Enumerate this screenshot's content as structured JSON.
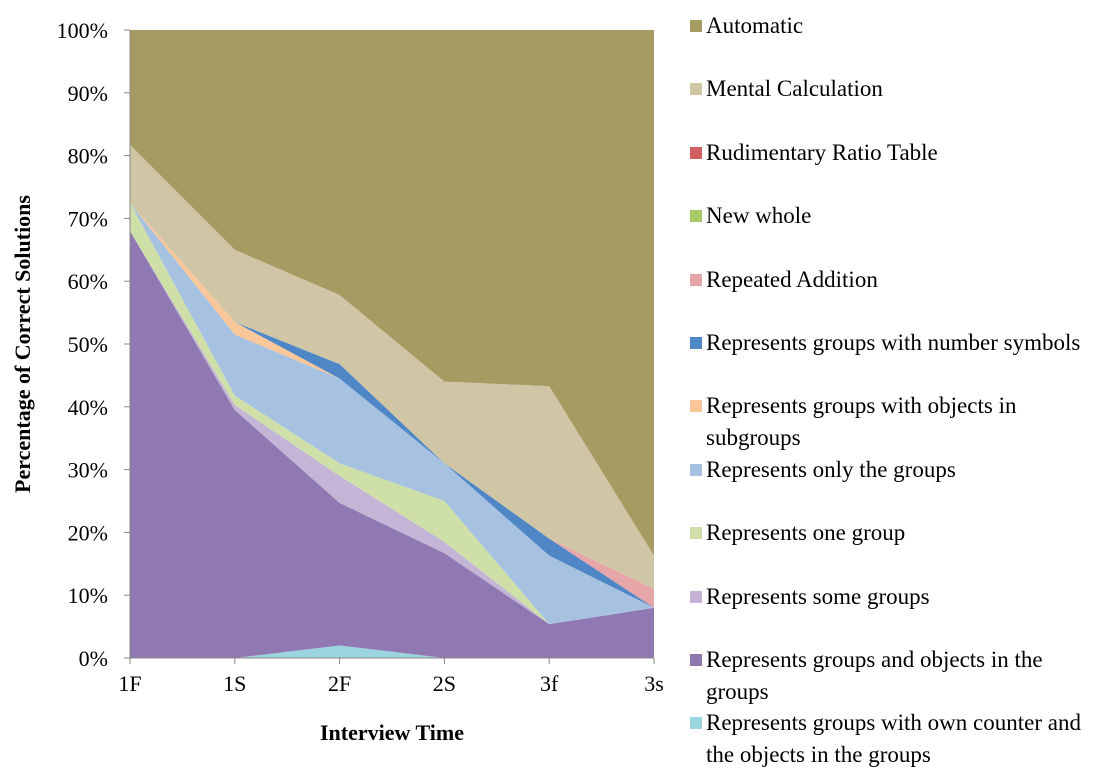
{
  "chart_data": {
    "type": "stacked-area",
    "xlabel": "Interview Time",
    "ylabel": "Percentage of Correct Solutions",
    "categories": [
      "1F",
      "1S",
      "2F",
      "2S",
      "3f",
      "3s"
    ],
    "ylim": [
      0,
      100
    ],
    "yticks": [
      {
        "value": 0,
        "label": "0%"
      },
      {
        "value": 10,
        "label": "10%"
      },
      {
        "value": 20,
        "label": "20%"
      },
      {
        "value": 30,
        "label": "30%"
      },
      {
        "value": 40,
        "label": "40%"
      },
      {
        "value": 50,
        "label": "50%"
      },
      {
        "value": 60,
        "label": "60%"
      },
      {
        "value": 70,
        "label": "70%"
      },
      {
        "value": 80,
        "label": "80%"
      },
      {
        "value": 90,
        "label": "90%"
      },
      {
        "value": 100,
        "label": "100%"
      }
    ],
    "legend": "right",
    "series": [
      {
        "name": "Automatic",
        "color": "#a59b63",
        "values": [
          18.3,
          35,
          42.2,
          56,
          56.7,
          83.7
        ]
      },
      {
        "name": "Mental Calculation",
        "color": "#d0c6a6",
        "values": [
          9.2,
          11.5,
          11,
          13,
          24.3,
          5.3
        ]
      },
      {
        "name": "Rudimentary Ratio Table",
        "color": "#d06060",
        "values": [
          0,
          0,
          0,
          0,
          0,
          0
        ]
      },
      {
        "name": "New whole",
        "color": "#a8c86a",
        "values": [
          0,
          0,
          0,
          0,
          0,
          0
        ]
      },
      {
        "name": "Repeated Addition",
        "color": "#e6a5a8",
        "values": [
          0,
          0,
          0,
          0,
          0,
          3
        ]
      },
      {
        "name": "Represents groups with number symbols",
        "color": "#4f86c6",
        "values": [
          0,
          0,
          2.3,
          0,
          2.7,
          0
        ]
      },
      {
        "name": "Represents groups with objects in subgroups",
        "color": "#f9c79a",
        "values": [
          0,
          2,
          0,
          0,
          0,
          0
        ]
      },
      {
        "name": "Represents only the groups",
        "color": "#a7c2e0",
        "values": [
          0,
          9.7,
          13.5,
          6,
          10.9,
          0
        ]
      },
      {
        "name": "Represents one group",
        "color": "#cfdfa8",
        "values": [
          4.5,
          1.5,
          2,
          6.5,
          0,
          0
        ]
      },
      {
        "name": "Represents some groups",
        "color": "#c4b5d6",
        "values": [
          0,
          0.8,
          4.3,
          1.8,
          0,
          0
        ]
      },
      {
        "name": "Represents groups and objects in the groups",
        "color": "#9079b3",
        "values": [
          68,
          39.5,
          22.7,
          16.7,
          5.4,
          8
        ]
      },
      {
        "name": "Represents groups with own counter and the objects in the groups",
        "color": "#9bd5e0",
        "values": [
          0,
          0,
          2,
          0,
          0,
          0
        ]
      }
    ]
  }
}
